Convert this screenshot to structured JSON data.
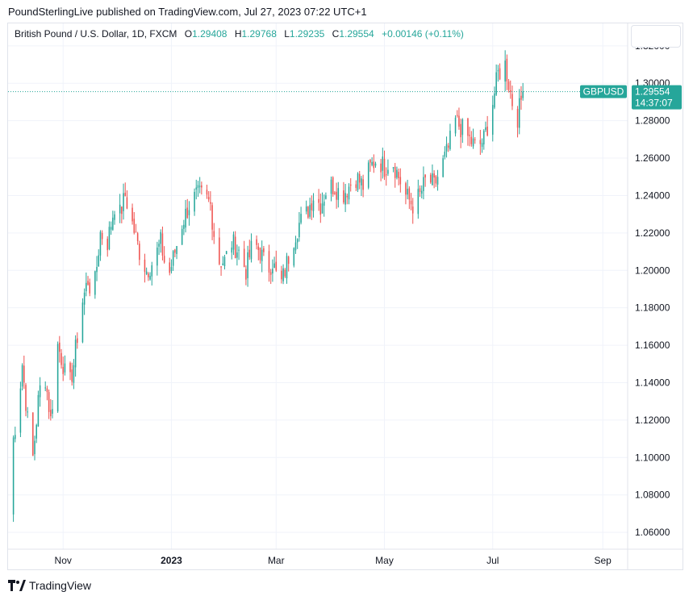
{
  "header": {
    "publisher_line": "PoundSterlingLive published on TradingView.com, Jul 27, 2023 07:22 UTC+1"
  },
  "legend": {
    "symbol": "British Pound / U.S. Dollar, 1D, FXCM",
    "o_label": "O",
    "o_value": "1.29408",
    "h_label": "H",
    "h_value": "1.29768",
    "l_label": "L",
    "l_value": "1.29235",
    "c_label": "C",
    "c_value": "1.29554",
    "change": "+0.00146 (+0.11%)"
  },
  "price_tag": {
    "symbol": "GBPUSD",
    "price": "1.29554",
    "countdown": "14:37:07",
    "color": "#26a69a"
  },
  "footer": {
    "brand": "TradingView",
    "logo_icon": "tradingview-logo-icon"
  },
  "colors": {
    "up": "#26a69a",
    "down": "#ef5350",
    "grid": "#f0f3fa"
  },
  "chart_data": {
    "type": "candlestick",
    "title": "British Pound / U.S. Dollar, 1D, FXCM",
    "y_ticks": [
      "1.32000",
      "1.30000",
      "1.28000",
      "1.26000",
      "1.24000",
      "1.22000",
      "1.20000",
      "1.18000",
      "1.16000",
      "1.14000",
      "1.12000",
      "1.10000",
      "1.08000",
      "1.06000"
    ],
    "ylim": [
      1.051,
      1.332
    ],
    "x_ticks": [
      {
        "label": "Nov",
        "day": 31
      },
      {
        "label": "2023",
        "day": 92
      },
      {
        "label": "Mar",
        "day": 151
      },
      {
        "label": "May",
        "day": 212
      },
      {
        "label": "Jul",
        "day": 273
      },
      {
        "label": "Sep",
        "day": 335
      }
    ],
    "x_range_days": [
      0,
      349
    ],
    "last_close": 1.29554,
    "grid": true,
    "anchors": [
      [
        2,
        1.07
      ],
      [
        3,
        1.11
      ],
      [
        6,
        1.13
      ],
      [
        8,
        1.15
      ],
      [
        11,
        1.12
      ],
      [
        14,
        1.1
      ],
      [
        17,
        1.13
      ],
      [
        20,
        1.15
      ],
      [
        24,
        1.12
      ],
      [
        28,
        1.16
      ],
      [
        31,
        1.15
      ],
      [
        34,
        1.135
      ],
      [
        37,
        1.15
      ],
      [
        41,
        1.18
      ],
      [
        45,
        1.195
      ],
      [
        48,
        1.185
      ],
      [
        52,
        1.22
      ],
      [
        56,
        1.215
      ],
      [
        60,
        1.235
      ],
      [
        63,
        1.23
      ],
      [
        66,
        1.24
      ],
      [
        70,
        1.225
      ],
      [
        74,
        1.21
      ],
      [
        78,
        1.2
      ],
      [
        82,
        1.205
      ],
      [
        86,
        1.215
      ],
      [
        90,
        1.195
      ],
      [
        94,
        1.21
      ],
      [
        98,
        1.225
      ],
      [
        102,
        1.235
      ],
      [
        106,
        1.24
      ],
      [
        110,
        1.24
      ],
      [
        114,
        1.235
      ],
      [
        118,
        1.205
      ],
      [
        122,
        1.205
      ],
      [
        126,
        1.215
      ],
      [
        130,
        1.21
      ],
      [
        134,
        1.2
      ],
      [
        138,
        1.215
      ],
      [
        142,
        1.21
      ],
      [
        146,
        1.2
      ],
      [
        149,
        1.205
      ],
      [
        153,
        1.19
      ],
      [
        156,
        1.2
      ],
      [
        160,
        1.215
      ],
      [
        164,
        1.225
      ],
      [
        168,
        1.23
      ],
      [
        172,
        1.24
      ],
      [
        176,
        1.235
      ],
      [
        180,
        1.245
      ],
      [
        184,
        1.245
      ],
      [
        188,
        1.24
      ],
      [
        192,
        1.245
      ],
      [
        196,
        1.25
      ],
      [
        200,
        1.245
      ],
      [
        204,
        1.255
      ],
      [
        208,
        1.26
      ],
      [
        212,
        1.255
      ],
      [
        216,
        1.26
      ],
      [
        220,
        1.25
      ],
      [
        224,
        1.24
      ],
      [
        228,
        1.235
      ],
      [
        232,
        1.24
      ],
      [
        236,
        1.25
      ],
      [
        240,
        1.245
      ],
      [
        244,
        1.255
      ],
      [
        248,
        1.265
      ],
      [
        252,
        1.28
      ],
      [
        256,
        1.275
      ],
      [
        260,
        1.27
      ],
      [
        264,
        1.265
      ],
      [
        268,
        1.27
      ],
      [
        272,
        1.285
      ],
      [
        276,
        1.305
      ],
      [
        280,
        1.31
      ],
      [
        284,
        1.29
      ],
      [
        287,
        1.282
      ],
      [
        290,
        1.2955
      ]
    ]
  }
}
